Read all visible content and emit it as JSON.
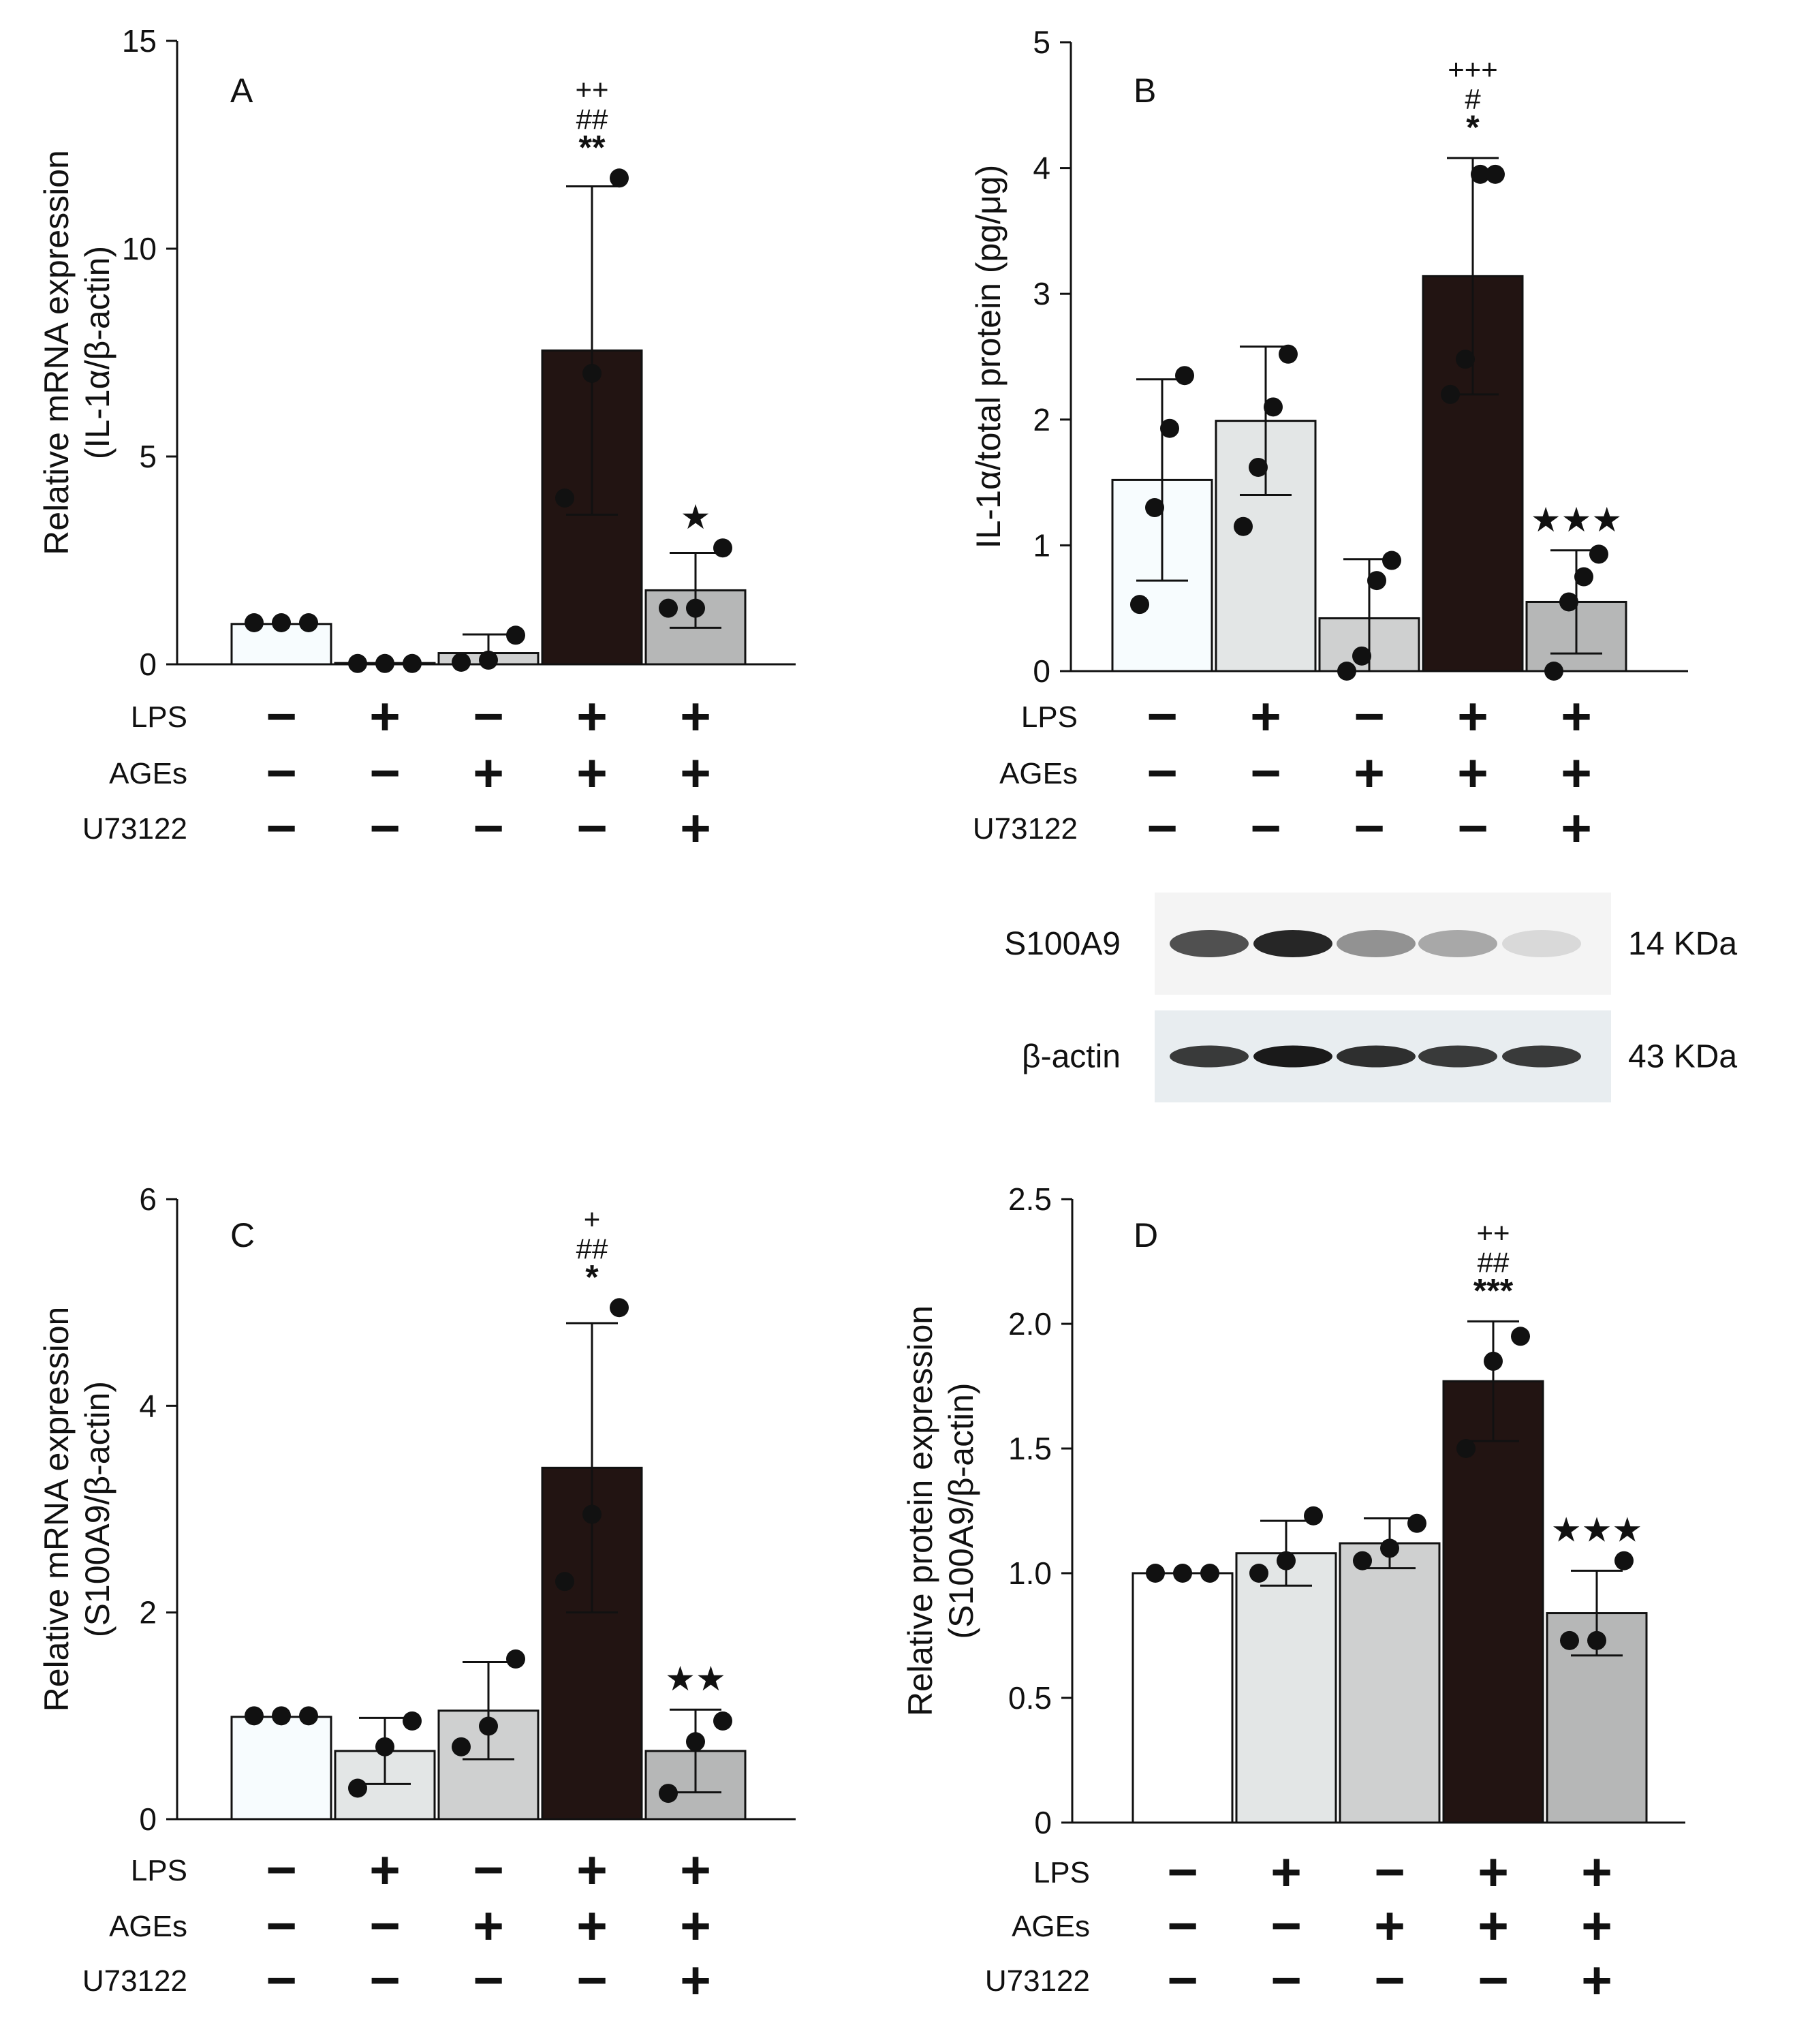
{
  "chart_data": [
    {
      "panel": "A",
      "type": "bar",
      "ylabel": "Relative mRNA expression",
      "ylabel_sub": "(IL-1α/β-actin)",
      "yticks": [
        "0",
        "5",
        "10",
        "15"
      ],
      "ylim": [
        0,
        15
      ],
      "values": [
        0.97,
        0.03,
        0.27,
        7.55,
        1.78
      ],
      "errors": [
        0.0,
        0.0,
        0.45,
        3.95,
        0.9
      ],
      "points": [
        [
          1.0,
          1.0,
          1.0
        ],
        [
          0.02,
          0.02,
          0.02
        ],
        [
          0.05,
          0.1,
          0.7
        ],
        [
          4.0,
          7.0,
          11.7
        ],
        [
          1.35,
          1.35,
          2.8
        ]
      ],
      "bar_colors": [
        "#f7fcfe",
        "#e3e6e6",
        "#cfd0d0",
        "#221412",
        "#b6b7b7"
      ],
      "significance": [
        [],
        [],
        [],
        [
          "++",
          "##",
          "**"
        ],
        [
          "★"
        ]
      ],
      "rows": [
        {
          "label": "LPS",
          "signs": [
            "−",
            "+",
            "−",
            "+",
            "+"
          ]
        },
        {
          "label": "AGEs",
          "signs": [
            "−",
            "−",
            "+",
            "+",
            "+"
          ]
        },
        {
          "label": "U73122",
          "signs": [
            "−",
            "−",
            "−",
            "−",
            "+"
          ]
        }
      ]
    },
    {
      "panel": "B",
      "type": "bar",
      "ylabel": "IL-1α/total protein (pg/μg)",
      "ylabel_sub": "",
      "yticks": [
        "0",
        "1",
        "2",
        "3",
        "4",
        "5"
      ],
      "ylim": [
        0,
        5
      ],
      "values": [
        1.52,
        1.99,
        0.42,
        3.14,
        0.55
      ],
      "errors": [
        0.8,
        0.59,
        0.47,
        0.94,
        0.41
      ],
      "points": [
        [
          0.53,
          1.3,
          1.93,
          2.35
        ],
        [
          1.15,
          1.62,
          2.1,
          2.52
        ],
        [
          0.0,
          0.12,
          0.72,
          0.88
        ],
        [
          2.2,
          2.48,
          3.95,
          3.95
        ],
        [
          0.0,
          0.55,
          0.75,
          0.93
        ]
      ],
      "bar_colors": [
        "#f7fcfe",
        "#e3e6e6",
        "#cfd0d0",
        "#221412",
        "#b6b7b7"
      ],
      "significance": [
        [],
        [],
        [],
        [
          "+++",
          "#",
          "*"
        ],
        [
          "★★★"
        ]
      ],
      "rows": [
        {
          "label": "LPS",
          "signs": [
            "−",
            "+",
            "−",
            "+",
            "+"
          ]
        },
        {
          "label": "AGEs",
          "signs": [
            "−",
            "−",
            "+",
            "+",
            "+"
          ]
        },
        {
          "label": "U73122",
          "signs": [
            "−",
            "−",
            "−",
            "−",
            "+"
          ]
        }
      ]
    },
    {
      "panel": "C",
      "type": "bar",
      "ylabel": "Relative mRNA expression",
      "ylabel_sub": "(S100A9/β-actin)",
      "yticks": [
        "0",
        "2",
        "4",
        "6"
      ],
      "ylim": [
        0,
        6
      ],
      "values": [
        0.99,
        0.66,
        1.05,
        3.4,
        0.66
      ],
      "errors": [
        0.0,
        0.32,
        0.47,
        1.4,
        0.4
      ],
      "points": [
        [
          1.0,
          1.0,
          1.0
        ],
        [
          0.3,
          0.7,
          0.95
        ],
        [
          0.7,
          0.9,
          1.55
        ],
        [
          2.3,
          2.95,
          4.95
        ],
        [
          0.25,
          0.75,
          0.95
        ]
      ],
      "bar_colors": [
        "#f7fcfe",
        "#e3e6e6",
        "#cfd0d0",
        "#221412",
        "#b6b7b7"
      ],
      "significance": [
        [],
        [],
        [],
        [
          "+",
          "##",
          "*"
        ],
        [
          "★★"
        ]
      ],
      "rows": [
        {
          "label": "LPS",
          "signs": [
            "−",
            "+",
            "−",
            "+",
            "+"
          ]
        },
        {
          "label": "AGEs",
          "signs": [
            "−",
            "−",
            "+",
            "+",
            "+"
          ]
        },
        {
          "label": "U73122",
          "signs": [
            "−",
            "−",
            "−",
            "−",
            "+"
          ]
        }
      ]
    },
    {
      "panel": "D",
      "type": "bar",
      "ylabel": "Relative protein expression",
      "ylabel_sub": "(S100A9/β-actin)",
      "yticks": [
        "0",
        "0.5",
        "1.0",
        "1.5",
        "2.0",
        "2.5"
      ],
      "ylim": [
        0,
        2.5
      ],
      "values": [
        1.0,
        1.08,
        1.12,
        1.77,
        0.84
      ],
      "errors": [
        0.0,
        0.13,
        0.1,
        0.24,
        0.17
      ],
      "points": [
        [
          1.0,
          1.0,
          1.0
        ],
        [
          1.0,
          1.05,
          1.23
        ],
        [
          1.05,
          1.1,
          1.2
        ],
        [
          1.5,
          1.85,
          1.95
        ],
        [
          0.73,
          0.73,
          1.05
        ]
      ],
      "bar_colors": [
        "#ffffff",
        "#e3e6e6",
        "#cfd0d0",
        "#221412",
        "#b6b7b7"
      ],
      "significance": [
        [],
        [],
        [],
        [
          "++",
          "##",
          "***"
        ],
        [
          "★★★"
        ]
      ],
      "rows": [
        {
          "label": "LPS",
          "signs": [
            "−",
            "+",
            "−",
            "+",
            "+"
          ]
        },
        {
          "label": "AGEs",
          "signs": [
            "−",
            "−",
            "+",
            "+",
            "+"
          ]
        },
        {
          "label": "U73122",
          "signs": [
            "−",
            "−",
            "−",
            "−",
            "+"
          ]
        }
      ]
    }
  ],
  "western_blot": {
    "bands": [
      {
        "label": "S100A9",
        "size": "14 KDa",
        "intensities": [
          0.75,
          0.95,
          0.45,
          0.35,
          0.12
        ]
      },
      {
        "label": "β-actin",
        "size": "43 KDa",
        "intensities": [
          0.85,
          1.0,
          0.9,
          0.85,
          0.85
        ]
      }
    ]
  }
}
